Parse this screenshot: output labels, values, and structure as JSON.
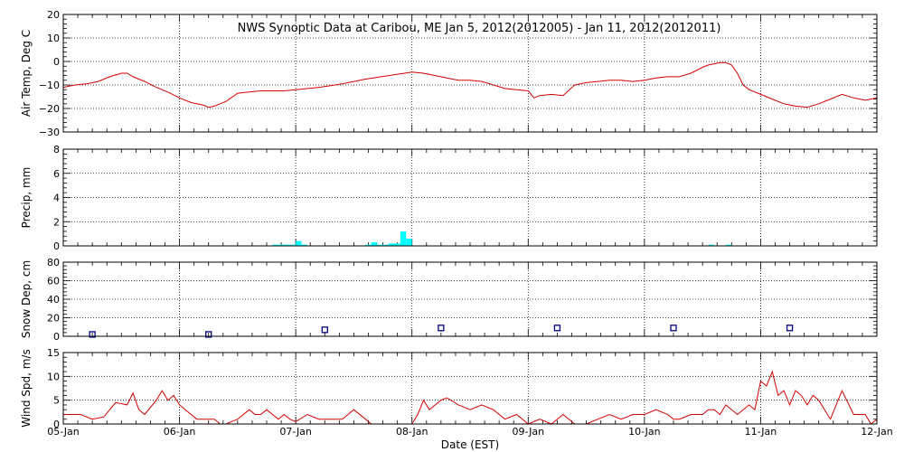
{
  "title": "NWS Synoptic Data at Caribou, ME   Jan  5, 2012(2012005) - Jan 11, 2012(2012011)",
  "x_axis": {
    "label": "Date (EST)",
    "range_days": [
      0,
      7
    ],
    "tick_labels": [
      "05-Jan",
      "06-Jan",
      "07-Jan",
      "08-Jan",
      "09-Jan",
      "10-Jan",
      "11-Jan",
      "12-Jan"
    ]
  },
  "colors": {
    "temp": "#d40000",
    "precip": "#00ffff",
    "snow": "#000080",
    "wind": "#d40000",
    "axes": "#000000"
  },
  "chart_data": [
    {
      "type": "line",
      "name": "air-temp",
      "ylabel": "Air Temp, Deg C",
      "ylim": [
        -30,
        20
      ],
      "yticks": [
        20,
        10,
        0,
        -10,
        -20,
        -30
      ],
      "ytick_labels": [
        "20",
        "10",
        "0",
        "−10",
        "−20",
        "−30"
      ],
      "x": [
        0,
        0.1,
        0.2,
        0.3,
        0.4,
        0.5,
        0.55,
        0.6,
        0.7,
        0.8,
        0.9,
        1.0,
        1.1,
        1.2,
        1.25,
        1.3,
        1.35,
        1.4,
        1.5,
        1.6,
        1.7,
        1.8,
        1.9,
        2.0,
        2.2,
        2.4,
        2.6,
        2.8,
        3.0,
        3.1,
        3.2,
        3.3,
        3.4,
        3.5,
        3.6,
        3.7,
        3.8,
        3.9,
        4.0,
        4.05,
        4.1,
        4.2,
        4.3,
        4.4,
        4.5,
        4.6,
        4.7,
        4.8,
        4.9,
        5.0,
        5.1,
        5.2,
        5.3,
        5.4,
        5.5,
        5.55,
        5.6,
        5.65,
        5.7,
        5.75,
        5.8,
        5.85,
        5.9,
        6.0,
        6.1,
        6.2,
        6.3,
        6.4,
        6.5,
        6.6,
        6.7,
        6.8,
        6.9,
        7.0
      ],
      "y": [
        -11,
        -10,
        -9.5,
        -8.5,
        -6.5,
        -5,
        -5,
        -6.5,
        -8.5,
        -11,
        -13,
        -15.5,
        -17.5,
        -18.5,
        -19.5,
        -19,
        -18,
        -17,
        -13.5,
        -13,
        -12.5,
        -12.5,
        -12.5,
        -12,
        -11,
        -9.5,
        -7.5,
        -6,
        -4.5,
        -5,
        -6,
        -7,
        -8,
        -8,
        -8.5,
        -10,
        -11.5,
        -12,
        -12.5,
        -15.5,
        -14.5,
        -14,
        -14.5,
        -10,
        -9,
        -8.5,
        -8,
        -8,
        -8.5,
        -8,
        -7,
        -6.5,
        -6.5,
        -5,
        -2.5,
        -1.5,
        -1,
        -0.5,
        -0.5,
        -1.5,
        -5,
        -10,
        -12,
        -14,
        -16,
        -18,
        -19,
        -19.5,
        -18,
        -16,
        -14,
        -15.5,
        -16.5,
        -15.5
      ]
    },
    {
      "type": "bar",
      "name": "precip",
      "ylabel": "Precip, mm",
      "ylim": [
        0,
        8
      ],
      "yticks": [
        0,
        2,
        4,
        6,
        8
      ],
      "ytick_labels": [
        "0",
        "2",
        "4",
        "6",
        "8"
      ],
      "bar_width_days": 0.05,
      "x": [
        1.8,
        1.85,
        1.9,
        1.95,
        2.0,
        2.05,
        2.6,
        2.65,
        2.7,
        2.75,
        2.8,
        2.85,
        2.9,
        2.95,
        5.55,
        5.7
      ],
      "values": [
        0.1,
        0.1,
        0.1,
        0.1,
        0.4,
        0.1,
        0.1,
        0.3,
        0.1,
        0.1,
        0.2,
        0.2,
        1.2,
        0.6,
        0.1,
        0.1
      ]
    },
    {
      "type": "scatter",
      "name": "snow-depth",
      "ylabel": "Snow Dep, cm",
      "ylim": [
        0,
        80
      ],
      "yticks": [
        0,
        20,
        40,
        60,
        80
      ],
      "ytick_labels": [
        "0",
        "20",
        "40",
        "60",
        "80"
      ],
      "x": [
        0.25,
        1.25,
        2.25,
        3.25,
        4.25,
        5.25,
        6.25
      ],
      "y": [
        2,
        2,
        7,
        9,
        9,
        9,
        9
      ]
    },
    {
      "type": "line",
      "name": "wind-speed",
      "ylabel": "Wind Spd, m/s",
      "ylim": [
        0,
        15
      ],
      "yticks": [
        0,
        5,
        10,
        15
      ],
      "ytick_labels": [
        "0",
        "5",
        "10",
        "15"
      ],
      "x": [
        0,
        0.15,
        0.25,
        0.35,
        0.4,
        0.45,
        0.55,
        0.6,
        0.65,
        0.7,
        0.8,
        0.85,
        0.9,
        0.95,
        1.0,
        1.05,
        1.1,
        1.15,
        1.2,
        1.3,
        1.35,
        1.4,
        1.5,
        1.6,
        1.65,
        1.7,
        1.75,
        1.8,
        1.85,
        1.9,
        1.95,
        2.0,
        2.1,
        2.2,
        2.3,
        2.4,
        2.5,
        2.6,
        2.65,
        2.7,
        2.8,
        2.9,
        2.95,
        3.0,
        3.05,
        3.1,
        3.15,
        3.2,
        3.25,
        3.3,
        3.4,
        3.5,
        3.6,
        3.7,
        3.8,
        3.9,
        4.0,
        4.1,
        4.2,
        4.3,
        4.4,
        4.5,
        4.6,
        4.7,
        4.8,
        4.9,
        5.0,
        5.1,
        5.2,
        5.25,
        5.3,
        5.4,
        5.5,
        5.55,
        5.6,
        5.65,
        5.7,
        5.75,
        5.8,
        5.85,
        5.9,
        5.95,
        6.0,
        6.05,
        6.1,
        6.15,
        6.2,
        6.25,
        6.3,
        6.35,
        6.4,
        6.45,
        6.5,
        6.6,
        6.7,
        6.8,
        6.85,
        6.9,
        6.95,
        7.0
      ],
      "y": [
        2,
        2,
        1,
        1.5,
        3,
        4.5,
        4,
        6.5,
        3,
        2,
        5,
        7,
        5,
        6,
        4,
        3,
        2,
        1,
        1,
        1,
        0,
        0,
        1,
        3,
        2,
        2,
        3,
        2,
        1,
        2,
        1,
        0.5,
        2,
        1,
        1,
        1,
        3,
        1,
        0,
        0,
        0,
        0,
        0,
        0,
        2,
        5,
        3,
        4,
        5,
        5.5,
        4,
        3,
        4,
        3,
        1,
        2,
        0,
        1,
        0,
        2,
        0,
        0,
        1,
        2,
        1,
        2,
        2,
        3,
        2,
        1,
        1,
        2,
        2,
        3,
        3,
        2,
        4,
        3,
        2,
        3,
        4,
        3,
        9,
        8,
        11,
        6,
        7,
        4,
        7,
        6,
        4,
        6,
        5,
        1,
        7,
        2,
        2,
        2,
        0,
        1
      ]
    }
  ]
}
